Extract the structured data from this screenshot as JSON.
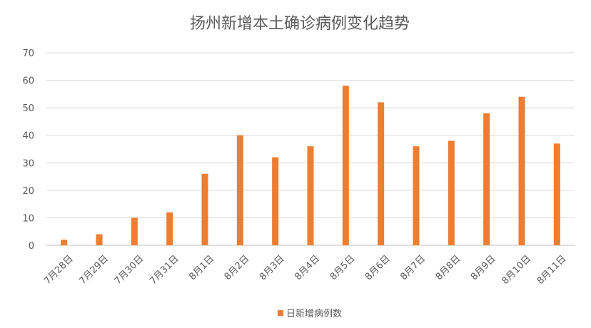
{
  "chart_data": {
    "type": "bar",
    "title": "扬州新增本土确诊病例变化趋势",
    "xlabel": "",
    "ylabel": "",
    "categories": [
      "7月28日",
      "7月29日",
      "7月30日",
      "7月31日",
      "8月1日",
      "8月2日",
      "8月3日",
      "8月4日",
      "8月5日",
      "8月6日",
      "8月7日",
      "8月8日",
      "8月9日",
      "8月10日",
      "8月11日"
    ],
    "series": [
      {
        "name": "日新增病例数",
        "values": [
          2,
          4,
          10,
          12,
          26,
          40,
          32,
          36,
          58,
          52,
          36,
          38,
          48,
          54,
          37
        ],
        "color": "#ed7d31"
      }
    ],
    "ylim": [
      0,
      70
    ],
    "yticks": [
      0,
      10,
      20,
      30,
      40,
      50,
      60,
      70
    ],
    "grid": true,
    "legend_position": "bottom"
  }
}
